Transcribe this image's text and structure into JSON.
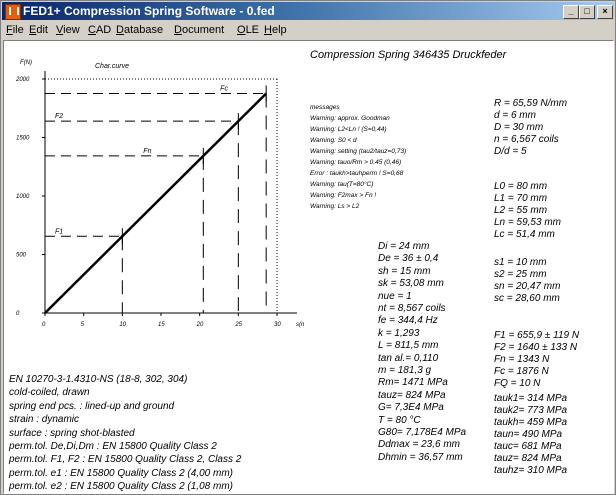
{
  "window": {
    "title": "FED1+  Compression Spring Software  - 0.fed",
    "minimize_glyph": "_",
    "maximize_glyph": "□",
    "close_glyph": "×"
  },
  "menu": [
    "File",
    "Edit",
    "View",
    "CAD",
    "Database",
    "Document",
    "OLE",
    "Help"
  ],
  "doc_title": "Compression Spring  346435  Druckfeder",
  "chart_data": {
    "type": "line",
    "title": "Char.curve",
    "ylabel": "F(N)",
    "xlabel": "s(mm)",
    "x_ticks": [
      0,
      5,
      10,
      15,
      20,
      25,
      30
    ],
    "y_ticks": [
      0,
      500,
      1000,
      1500,
      2000
    ],
    "xlim": [
      0,
      30
    ],
    "ylim": [
      0,
      2000
    ],
    "series": [
      {
        "values": [
          [
            0,
            0
          ],
          [
            28.6,
            1876
          ]
        ]
      }
    ],
    "markers": [
      {
        "label": "F1",
        "s": 10,
        "F": 655.9
      },
      {
        "label": "F2",
        "s": 25,
        "F": 1640
      },
      {
        "label": "Fn",
        "s": 20.47,
        "F": 1343
      },
      {
        "label": "Fc",
        "s": 28.6,
        "F": 1876
      }
    ],
    "grid": false
  },
  "messages": {
    "header": "messages",
    "lines": [
      "Warning: approx. Goodman",
      "Warning: L2<Ln ! (S=0,44)",
      "Warning: S0 < d",
      "Warning: setting (tau2/tauz=0,73)",
      "Warning: tauo/Rm > 0.45 (0,46)",
      "Error   : taukh>tauhperm ! S=0,68",
      "Warning: tau(T=80°C)",
      "Warning: F2max > Fn !",
      "Warning: Ls > L2"
    ]
  },
  "right_params_1": [
    "R  = 65,59 N/mm",
    "d  = 6 mm",
    "D = 30 mm",
    "n  = 6,567 coils",
    "D/d = 5"
  ],
  "right_params_2": [
    "L0 = 80 mm",
    "L1 = 70 mm",
    "L2 = 55 mm",
    "Ln = 59,53 mm",
    "Lc = 51,4 mm"
  ],
  "right_params_3": [
    "s1 = 10 mm",
    "s2 = 25 mm",
    "sn = 20,47 mm",
    "sc = 28,60 mm"
  ],
  "right_params_4": [
    "F1 = 655,9 ± 119 N",
    "F2 = 1640 ± 133 N",
    "Fn = 1343 N",
    "Fc = 1876 N",
    "FQ = 10 N"
  ],
  "right_params_5": [
    "tauk1=  314 MPa",
    "tauk2=  773 MPa",
    "taukh=  459 MPa",
    "taun=  490 MPa",
    "tauc=  681 MPa",
    "tauz=  824 MPa",
    "tauhz=  310 MPa"
  ],
  "mid_params": [
    "Di = 24 mm",
    "De = 36 ± 0,4",
    "sh = 15 mm",
    "sk = 53,08 mm",
    "nue = 1",
    "nt = 8,567 coils",
    "fe = 344,4 Hz",
    "k = 1,293",
    "L = 811,5 mm",
    "tan al.= 0,110",
    "m = 181,3 g",
    "Rm= 1471 MPa",
    "tauz=  824 MPa",
    "G= 7,3E4 MPa",
    "T = 80 °C",
    "G80= 7,178E4 MPa",
    "Ddmax = 23,6 mm",
    "Dhmin = 36,57 mm"
  ],
  "left_text": [
    "EN 10270-3-1.4310-NS (18-8, 302, 304)",
    "cold-coiled, drawn",
    "spring end pcs. : lined-up and ground",
    "strain : dynamic",
    "surface : spring shot-blasted",
    "perm.tol. De,Di,Dm : EN 15800 Quality Class 2",
    "perm.tol. F1, F2 : EN 15800 Quality Class 2, Class 2",
    "perm.tol. e1 : EN 15800 Quality Class 2 (4,00 mm)",
    "perm.tol. e2 : EN 15800 Quality Class 2 (1,08 mm)"
  ]
}
